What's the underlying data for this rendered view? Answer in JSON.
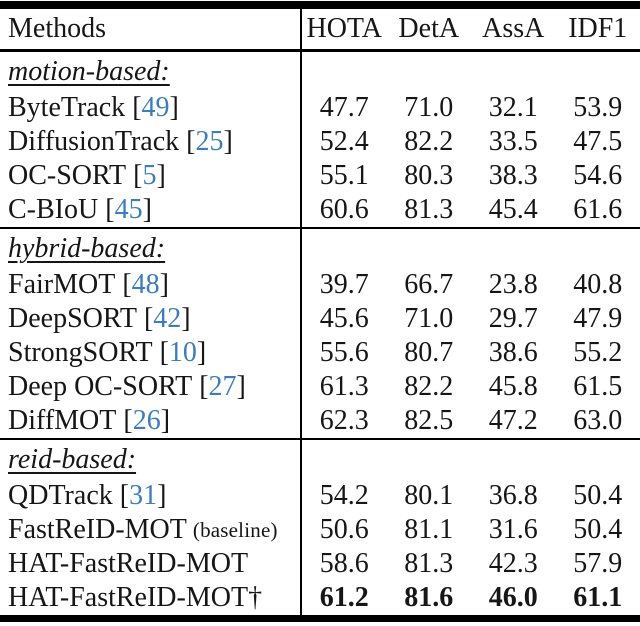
{
  "accent_color": "#3d7dbd",
  "table": {
    "methods_header": "Methods",
    "metric_headers": [
      "HOTA",
      "DetA",
      "AssA",
      "IDF1"
    ],
    "cite_open": "[",
    "cite_close": "]",
    "sections": [
      {
        "label": "motion-based:",
        "rows": [
          {
            "name": "ByteTrack",
            "cite": "49",
            "values": [
              "47.7",
              "71.0",
              "32.1",
              "53.9"
            ]
          },
          {
            "name": "DiffusionTrack",
            "cite": "25",
            "values": [
              "52.4",
              "82.2",
              "33.5",
              "47.5"
            ]
          },
          {
            "name": "OC-SORT",
            "cite": "5",
            "values": [
              "55.1",
              "80.3",
              "38.3",
              "54.6"
            ]
          },
          {
            "name": "C-BIoU",
            "cite": "45",
            "values": [
              "60.6",
              "81.3",
              "45.4",
              "61.6"
            ]
          }
        ]
      },
      {
        "label": "hybrid-based:",
        "rows": [
          {
            "name": "FairMOT",
            "cite": "48",
            "values": [
              "39.7",
              "66.7",
              "23.8",
              "40.8"
            ]
          },
          {
            "name": "DeepSORT",
            "cite": "42",
            "values": [
              "45.6",
              "71.0",
              "29.7",
              "47.9"
            ]
          },
          {
            "name": "StrongSORT",
            "cite": "10",
            "values": [
              "55.6",
              "80.7",
              "38.6",
              "55.2"
            ]
          },
          {
            "name": "Deep OC-SORT",
            "cite": "27",
            "values": [
              "61.3",
              "82.2",
              "45.8",
              "61.5"
            ]
          },
          {
            "name": "DiffMOT",
            "cite": "26",
            "values": [
              "62.3",
              "82.5",
              "47.2",
              "63.0"
            ]
          }
        ]
      },
      {
        "label": "reid-based:",
        "rows": [
          {
            "name": "QDTrack",
            "cite": "31",
            "values": [
              "54.2",
              "80.1",
              "36.8",
              "50.4"
            ]
          },
          {
            "name": "FastReID-MOT",
            "note": "(baseline)",
            "values": [
              "50.6",
              "81.1",
              "31.6",
              "50.4"
            ]
          },
          {
            "name": "HAT-FastReID-MOT",
            "values": [
              "58.6",
              "81.3",
              "42.3",
              "57.9"
            ]
          },
          {
            "name": "HAT-FastReID-MOT†",
            "bold": true,
            "values": [
              "61.2",
              "81.6",
              "46.0",
              "61.1"
            ]
          }
        ]
      }
    ]
  }
}
